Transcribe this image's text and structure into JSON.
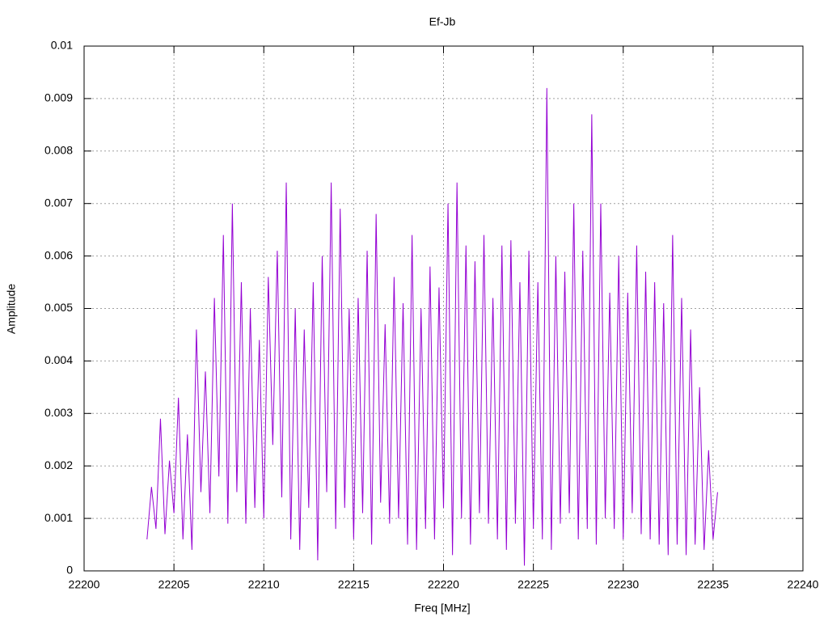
{
  "chart_data": {
    "type": "line",
    "title": "Ef-Jb",
    "x_label": "Freq [MHz]",
    "y_label": "Amplitude",
    "xlim": [
      22200,
      22240
    ],
    "xticks": [
      22200,
      22205,
      22210,
      22215,
      22220,
      22225,
      22230,
      22235,
      22240
    ],
    "ylim": [
      0,
      0.01
    ],
    "yticks": [
      0,
      0.001,
      0.002,
      0.003,
      0.004,
      0.005,
      0.006,
      0.007,
      0.008,
      0.009,
      0.01
    ],
    "grid": true,
    "x": [
      22203.5,
      22203.75,
      22204,
      22204.25,
      22204.5,
      22204.75,
      22205,
      22205.25,
      22205.5,
      22205.75,
      22206,
      22206.25,
      22206.5,
      22206.75,
      22207,
      22207.25,
      22207.5,
      22207.75,
      22208,
      22208.25,
      22208.5,
      22208.75,
      22209,
      22209.25,
      22209.5,
      22209.75,
      22210,
      22210.25,
      22210.5,
      22210.75,
      22211,
      22211.25,
      22211.5,
      22211.75,
      22212,
      22212.25,
      22212.5,
      22212.75,
      22213,
      22213.25,
      22213.5,
      22213.75,
      22214,
      22214.25,
      22214.5,
      22214.75,
      22215,
      22215.25,
      22215.5,
      22215.75,
      22216,
      22216.25,
      22216.5,
      22216.75,
      22217,
      22217.25,
      22217.5,
      22217.75,
      22218,
      22218.25,
      22218.5,
      22218.75,
      22219,
      22219.25,
      22219.5,
      22219.75,
      22220,
      22220.25,
      22220.5,
      22220.75,
      22221,
      22221.25,
      22221.5,
      22221.75,
      22222,
      22222.25,
      22222.5,
      22222.75,
      22223,
      22223.25,
      22223.5,
      22223.75,
      22224,
      22224.25,
      22224.5,
      22224.75,
      22225,
      22225.25,
      22225.5,
      22225.75,
      22226,
      22226.25,
      22226.5,
      22226.75,
      22227,
      22227.25,
      22227.5,
      22227.75,
      22228,
      22228.25,
      22228.5,
      22228.75,
      22229,
      22229.25,
      22229.5,
      22229.75,
      22230,
      22230.25,
      22230.5,
      22230.75,
      22231,
      22231.25,
      22231.5,
      22231.75,
      22232,
      22232.25,
      22232.5,
      22232.75,
      22233,
      22233.25,
      22233.5,
      22233.75,
      22234,
      22234.25,
      22234.5,
      22234.75,
      22235,
      22235.25
    ],
    "series": [
      {
        "color": "#9400d3",
        "values": [
          0.0006,
          0.0016,
          0.0008,
          0.0029,
          0.0007,
          0.0021,
          0.0011,
          0.0033,
          0.0006,
          0.0026,
          0.0004,
          0.0046,
          0.0015,
          0.0038,
          0.0011,
          0.0052,
          0.0018,
          0.0064,
          0.0009,
          0.007,
          0.0015,
          0.0055,
          0.0009,
          0.005,
          0.0012,
          0.0044,
          0.001,
          0.0056,
          0.0024,
          0.0061,
          0.0014,
          0.0074,
          0.0006,
          0.005,
          0.0004,
          0.0046,
          0.0012,
          0.0055,
          0.0002,
          0.006,
          0.0015,
          0.0074,
          0.0008,
          0.0069,
          0.0012,
          0.005,
          0.0006,
          0.0052,
          0.0011,
          0.0061,
          0.0005,
          0.0068,
          0.0013,
          0.0047,
          0.0009,
          0.0056,
          0.001,
          0.0051,
          0.0005,
          0.0064,
          0.0004,
          0.005,
          0.0008,
          0.0058,
          0.0006,
          0.0054,
          0.0012,
          0.007,
          0.0003,
          0.0074,
          0.001,
          0.0062,
          0.0005,
          0.0059,
          0.0011,
          0.0064,
          0.0009,
          0.0052,
          0.0006,
          0.0062,
          0.0004,
          0.0063,
          0.0009,
          0.0055,
          0.0001,
          0.0061,
          0.0008,
          0.0055,
          0.0006,
          0.0092,
          0.0004,
          0.006,
          0.0009,
          0.0057,
          0.0011,
          0.007,
          0.0006,
          0.0061,
          0.0008,
          0.0087,
          0.0005,
          0.007,
          0.001,
          0.0053,
          0.0008,
          0.006,
          0.0006,
          0.0053,
          0.0011,
          0.0062,
          0.0007,
          0.0057,
          0.0006,
          0.0055,
          0.0005,
          0.0051,
          0.0003,
          0.0064,
          0.0005,
          0.0052,
          0.0003,
          0.0046,
          0.0005,
          0.0035,
          0.0004,
          0.0023,
          0.0006,
          0.0015
        ]
      }
    ]
  }
}
